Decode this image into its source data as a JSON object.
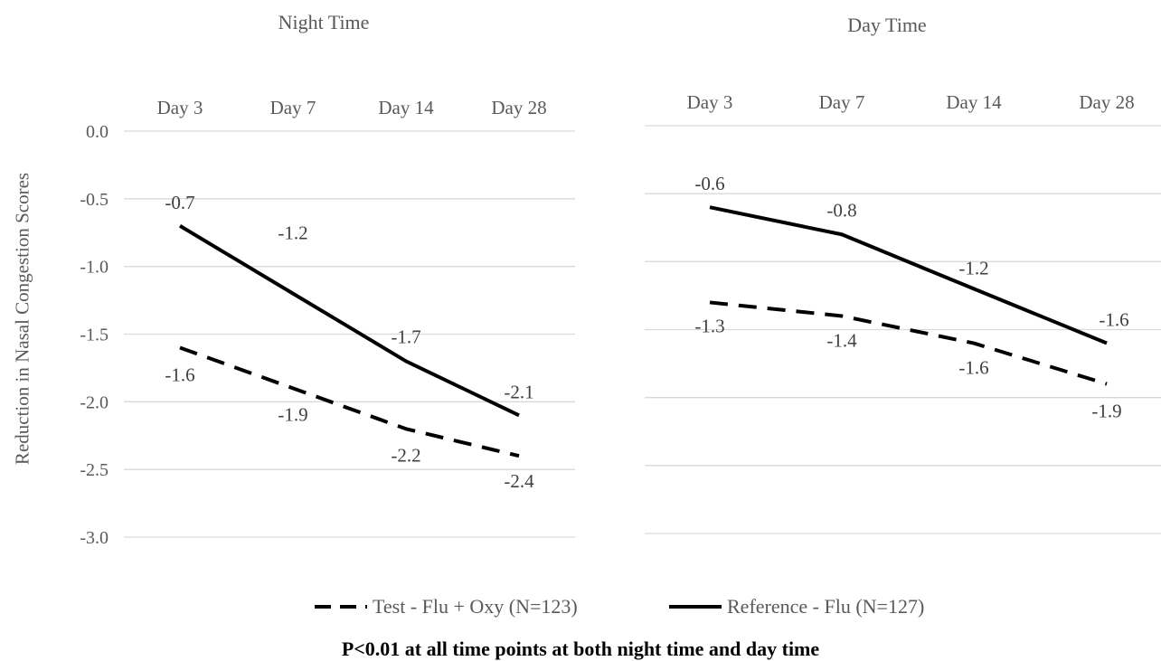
{
  "chart_data": [
    {
      "type": "line",
      "title": "Night Time",
      "ylabel": "Reduction in Nasal Congestion Scores",
      "categories": [
        "Day 3",
        "Day 7",
        "Day 14",
        "Day 28"
      ],
      "y_ticks": [
        "0.0",
        "-0.5",
        "-1.0",
        "-1.5",
        "-2.0",
        "-2.5",
        "-3.0"
      ],
      "ylim": [
        -3.0,
        0.0
      ],
      "x_axis_position": "top",
      "grid": true,
      "series": [
        {
          "name": "Test - Flu + Oxy (N=123)",
          "style": "dashed",
          "values": [
            -1.6,
            -1.9,
            -2.2,
            -2.4
          ]
        },
        {
          "name": "Reference - Flu (N=127)",
          "style": "solid",
          "values": [
            -0.7,
            -1.2,
            -1.7,
            -2.1
          ]
        }
      ]
    },
    {
      "type": "line",
      "title": "Day Time",
      "categories": [
        "Day 3",
        "Day 7",
        "Day 14",
        "Day 28"
      ],
      "ylim": [
        -3.0,
        0.0
      ],
      "x_axis_position": "top",
      "grid": true,
      "series": [
        {
          "name": "Test - Flu + Oxy (N=123)",
          "style": "dashed",
          "values": [
            -1.3,
            -1.4,
            -1.6,
            -1.9
          ]
        },
        {
          "name": "Reference - Flu (N=127)",
          "style": "solid",
          "values": [
            -0.6,
            -0.8,
            -1.2,
            -1.6
          ]
        }
      ]
    }
  ],
  "legend": {
    "position": "bottom",
    "test_label": "Test - Flu + Oxy (N=123)",
    "reference_label": "Reference - Flu (N=127)"
  },
  "footnote": "P<0.01 at all time points at both night time and day time",
  "colors": {
    "line": "#000000",
    "grid": "#d9d9d9",
    "text": "#595959"
  }
}
